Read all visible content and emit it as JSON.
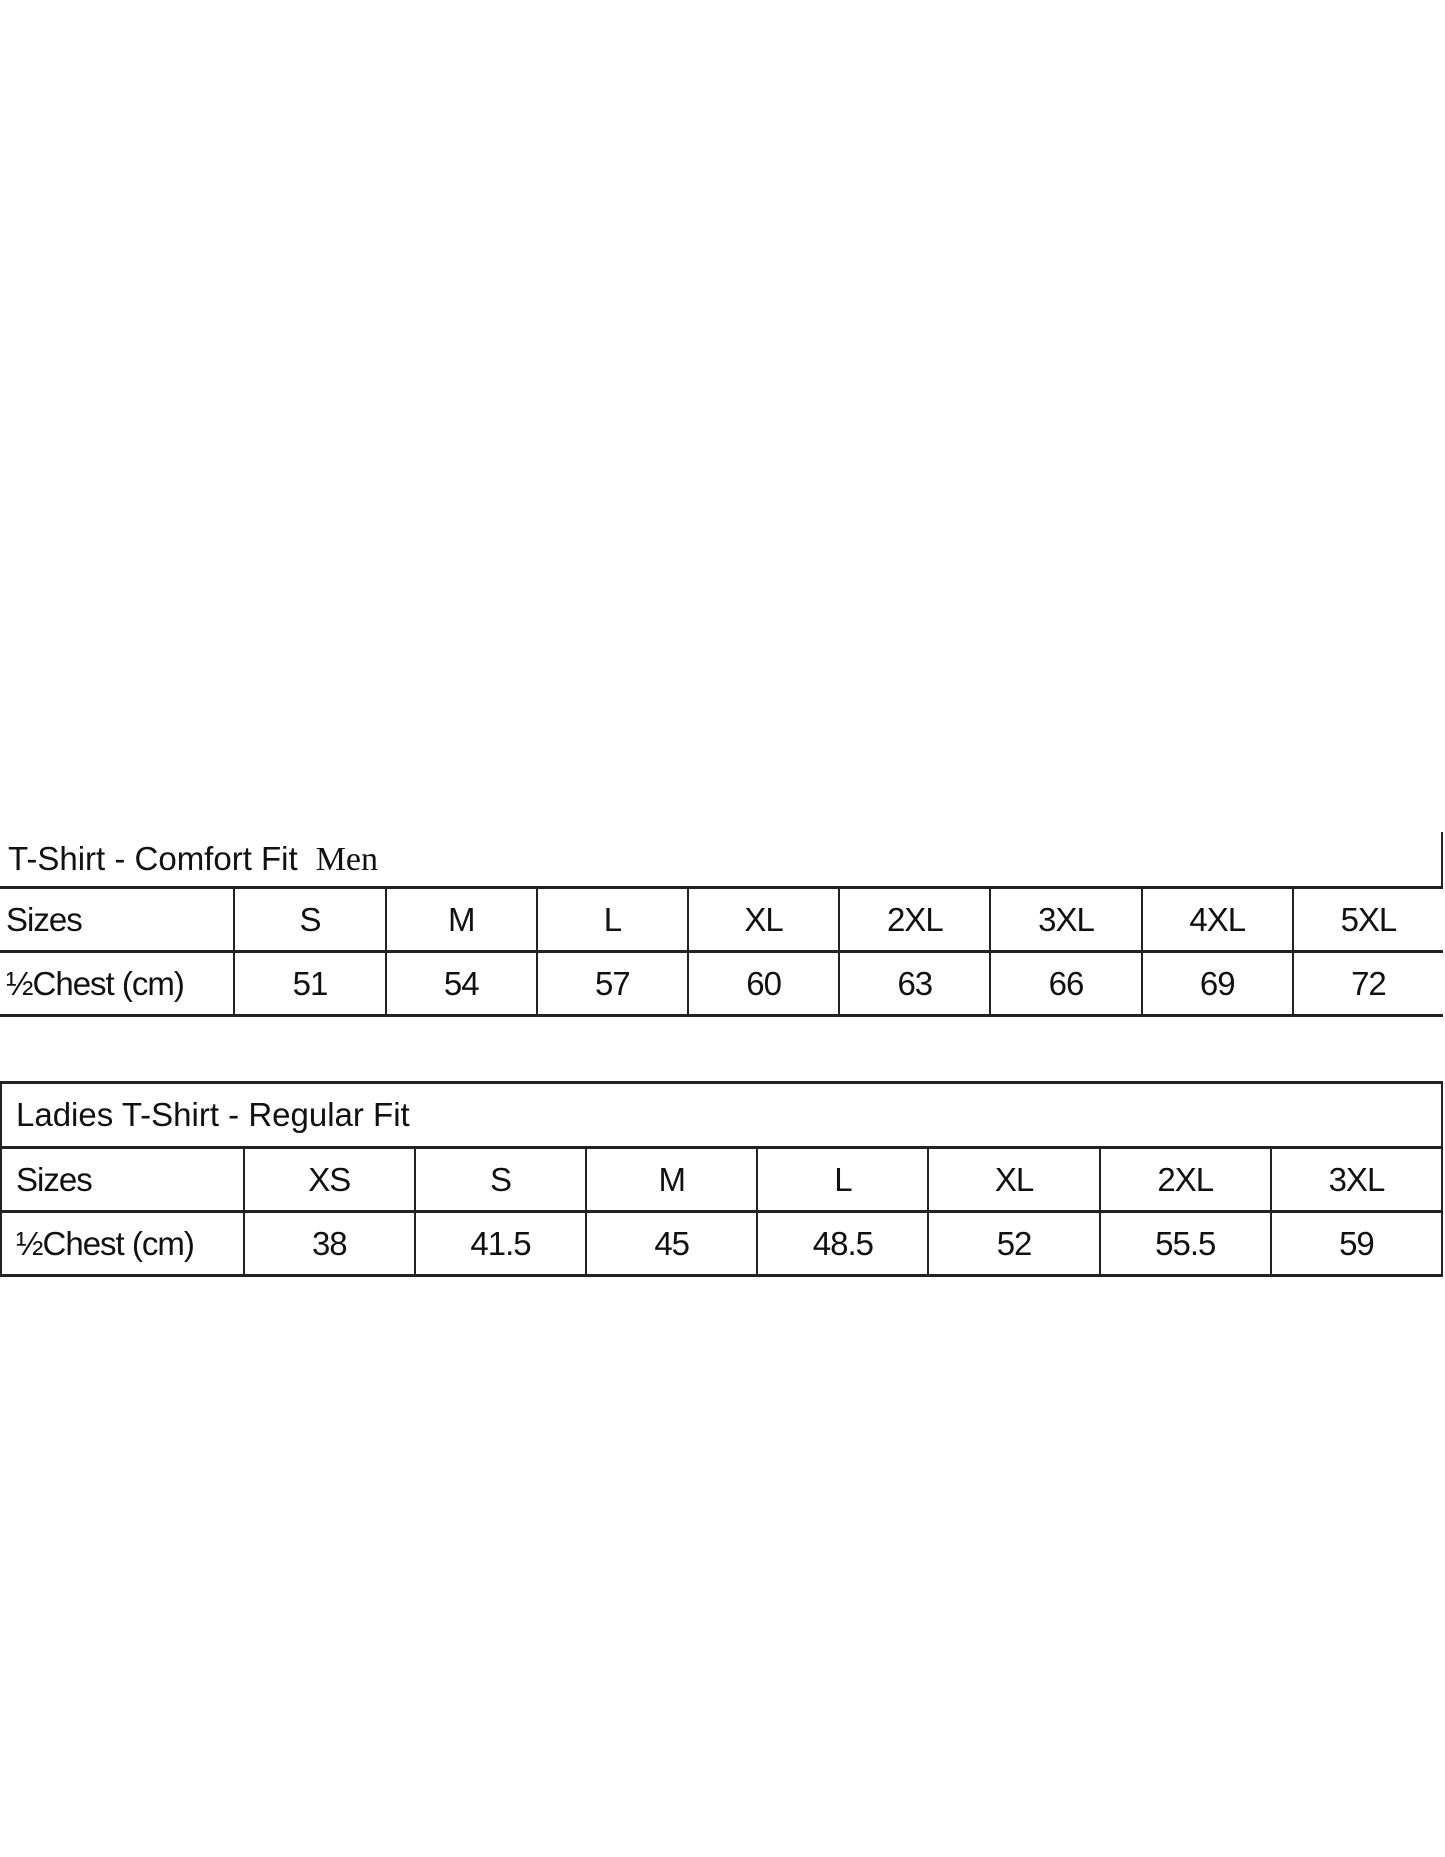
{
  "men": {
    "title": "T-Shirt - Comfort Fit",
    "label": "Men",
    "sizes_label": "Sizes",
    "chest_label": "½Chest (cm)",
    "sizes": [
      "S",
      "M",
      "L",
      "XL",
      "2XL",
      "3XL",
      "4XL",
      "5XL"
    ],
    "chest": [
      "51",
      "54",
      "57",
      "60",
      "63",
      "66",
      "69",
      "72"
    ]
  },
  "ladies": {
    "title": "Ladies T-Shirt - Regular Fit",
    "sizes_label": "Sizes",
    "chest_label": "½Chest (cm)",
    "sizes": [
      "XS",
      "S",
      "M",
      "L",
      "XL",
      "2XL",
      "3XL"
    ],
    "chest": [
      "38",
      "41.5",
      "45",
      "48.5",
      "52",
      "55.5",
      "59"
    ]
  }
}
